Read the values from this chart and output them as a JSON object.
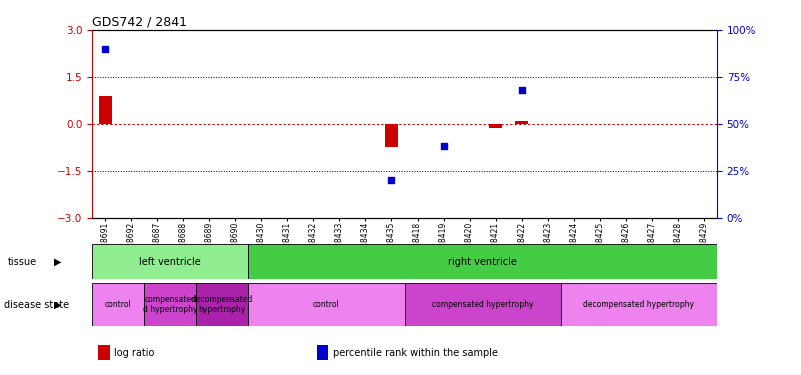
{
  "title": "GDS742 / 2841",
  "samples": [
    "GSM28691",
    "GSM28692",
    "GSM28687",
    "GSM28688",
    "GSM28689",
    "GSM28690",
    "GSM28430",
    "GSM28431",
    "GSM28432",
    "GSM28433",
    "GSM28434",
    "GSM28435",
    "GSM28418",
    "GSM28419",
    "GSM28420",
    "GSM28421",
    "GSM28422",
    "GSM28423",
    "GSM28424",
    "GSM28425",
    "GSM28426",
    "GSM28427",
    "GSM28428",
    "GSM28429"
  ],
  "log_ratio": [
    0.9,
    0.0,
    0.0,
    0.0,
    0.0,
    0.0,
    0.0,
    0.0,
    0.0,
    0.0,
    0.0,
    -0.75,
    0.0,
    0.0,
    0.0,
    -0.12,
    0.1,
    0.0,
    0.0,
    0.0,
    0.0,
    0.0,
    0.0,
    0.0
  ],
  "percentile_rank": [
    90.0,
    null,
    null,
    null,
    null,
    null,
    null,
    null,
    null,
    null,
    null,
    20.0,
    null,
    38.0,
    null,
    null,
    68.0,
    null,
    null,
    null,
    null,
    null,
    null,
    null
  ],
  "ylim": [
    -3,
    3
  ],
  "yticks_left": [
    -3,
    -1.5,
    0,
    1.5,
    3
  ],
  "yticks_right": [
    0,
    25,
    50,
    75,
    100
  ],
  "dotted_lines": [
    -1.5,
    1.5
  ],
  "tissue_groups": [
    {
      "label": "left ventricle",
      "start": 0,
      "end": 6,
      "color": "#90EE90"
    },
    {
      "label": "right ventricle",
      "start": 6,
      "end": 24,
      "color": "#44CC44"
    }
  ],
  "disease_groups": [
    {
      "label": "control",
      "start": 0,
      "end": 2,
      "color": "#EE82EE"
    },
    {
      "label": "compensated\nd hypertrophy",
      "start": 2,
      "end": 4,
      "color": "#CC44CC"
    },
    {
      "label": "decompensated\nhypertrophy",
      "start": 4,
      "end": 6,
      "color": "#AA22AA"
    },
    {
      "label": "control",
      "start": 6,
      "end": 12,
      "color": "#EE82EE"
    },
    {
      "label": "compensated hypertrophy",
      "start": 12,
      "end": 18,
      "color": "#CC44CC"
    },
    {
      "label": "decompensated hypertrophy",
      "start": 18,
      "end": 24,
      "color": "#EE82EE"
    }
  ],
  "bar_color": "#CC0000",
  "dot_color": "#0000CC",
  "zero_line_color": "#CC0000",
  "axis_left_color": "#CC0000",
  "axis_right_color": "#0000CC",
  "background_color": "#FFFFFF",
  "label_left_text": [
    "tissue",
    "disease state"
  ],
  "legend": [
    {
      "label": "log ratio",
      "color": "#CC0000"
    },
    {
      "label": "percentile rank within the sample",
      "color": "#0000CC"
    }
  ]
}
